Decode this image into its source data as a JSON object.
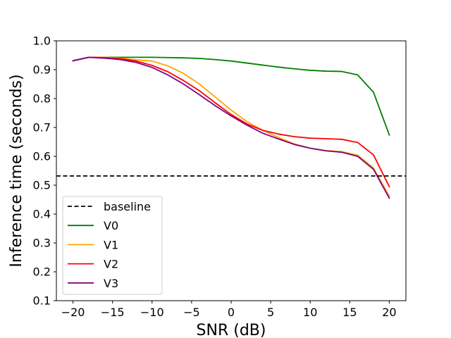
{
  "chart_data": {
    "type": "line",
    "title": "",
    "xlabel": "SNR (dB)",
    "ylabel": "Inference time (seconds)",
    "xlim": [
      -22.1,
      22.1
    ],
    "ylim": [
      0.1,
      1.0
    ],
    "xticks": [
      -20,
      -15,
      -10,
      -5,
      0,
      5,
      10,
      15,
      20
    ],
    "xtick_labels": [
      "−20",
      "−15",
      "−10",
      "−5",
      "0",
      "5",
      "10",
      "15",
      "20"
    ],
    "yticks": [
      0.1,
      0.2,
      0.3,
      0.4,
      0.5,
      0.6,
      0.7,
      0.8,
      0.9,
      1.0
    ],
    "ytick_labels": [
      "0.1",
      "0.2",
      "0.3",
      "0.4",
      "0.5",
      "0.6",
      "0.7",
      "0.8",
      "0.9",
      "1.0"
    ],
    "grid": false,
    "legend_position": "lower-left",
    "x": [
      -20,
      -18,
      -16,
      -14,
      -12,
      -10,
      -8,
      -6,
      -4,
      -2,
      0,
      2,
      4,
      6,
      8,
      10,
      12,
      14,
      16,
      18,
      20
    ],
    "baseline": {
      "name": "baseline",
      "value": 0.532,
      "color": "#000000",
      "style": "dashed"
    },
    "series": [
      {
        "name": "V0",
        "color": "#008000",
        "values": [
          0.931,
          0.943,
          0.943,
          0.943,
          0.943,
          0.943,
          0.942,
          0.941,
          0.939,
          0.935,
          0.93,
          0.923,
          0.916,
          0.909,
          0.903,
          0.898,
          0.895,
          0.894,
          0.882,
          0.822,
          0.674
        ]
      },
      {
        "name": "V1",
        "color": "#FFA500",
        "values": [
          0.931,
          0.943,
          0.943,
          0.94,
          0.934,
          0.93,
          0.913,
          0.887,
          0.85,
          0.805,
          0.76,
          0.72,
          0.69,
          0.665,
          0.643,
          0.628,
          0.62,
          0.616,
          0.604,
          0.56,
          0.462
        ]
      },
      {
        "name": "V2",
        "color": "#FF0000",
        "values": [
          0.931,
          0.943,
          0.942,
          0.938,
          0.93,
          0.915,
          0.893,
          0.862,
          0.827,
          0.785,
          0.745,
          0.712,
          0.69,
          0.677,
          0.668,
          0.663,
          0.661,
          0.659,
          0.648,
          0.605,
          0.495
        ]
      },
      {
        "name": "V3",
        "color": "#800080",
        "values": [
          0.931,
          0.943,
          0.94,
          0.935,
          0.925,
          0.908,
          0.882,
          0.85,
          0.813,
          0.775,
          0.74,
          0.708,
          0.68,
          0.66,
          0.641,
          0.628,
          0.619,
          0.614,
          0.6,
          0.555,
          0.455
        ]
      }
    ]
  }
}
